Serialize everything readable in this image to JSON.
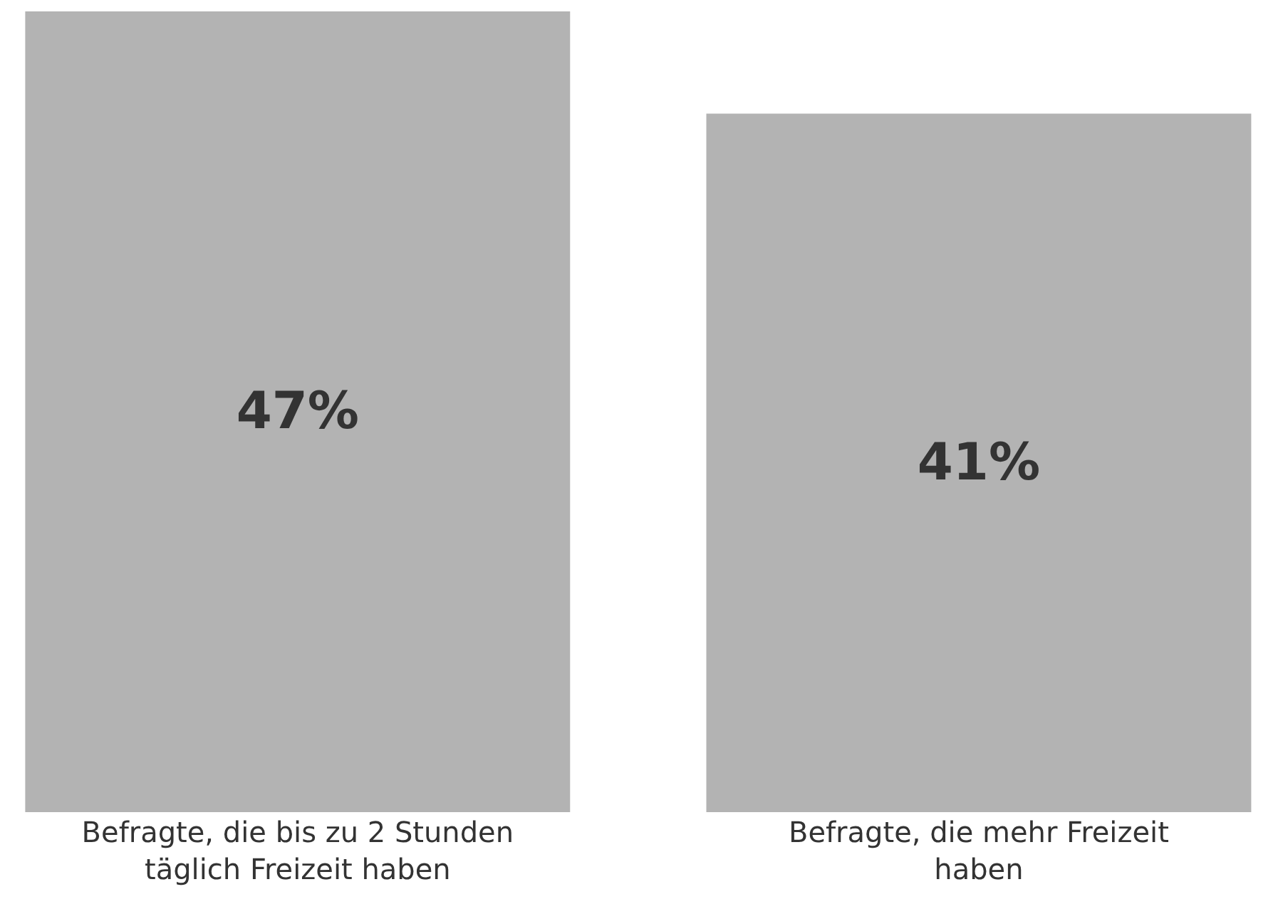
{
  "chart_data": {
    "type": "bar",
    "categories": [
      "Befragte, die bis zu 2 Stunden täglich Freizeit haben",
      "Befragte, die mehr Freizeit haben"
    ],
    "values": [
      47,
      41
    ],
    "value_labels": [
      "47%",
      "41%"
    ],
    "color": "#b3b3b3"
  }
}
